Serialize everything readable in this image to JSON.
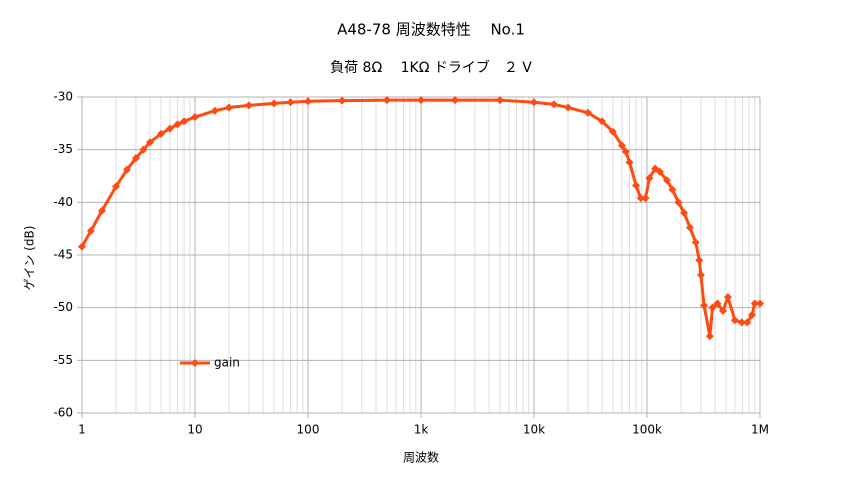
{
  "chart_data": {
    "type": "line",
    "title": "A48-78  周波数特性　 No.1",
    "subtitle": "負荷 8Ω　 1KΩ ドライブ　２ V",
    "xlabel": "周波数",
    "ylabel": "ゲイン (dB)",
    "xscale": "log",
    "grid": true,
    "minor_grid": true,
    "legend": "lower left",
    "xlim": [
      1,
      1000000
    ],
    "ylim": [
      -60,
      -30
    ],
    "xticks": [
      1,
      10,
      100,
      {
        "value": 1000,
        "label": "1k"
      },
      {
        "value": 10000,
        "label": "10k"
      },
      {
        "value": 100000,
        "label": "100k"
      },
      {
        "value": 1000000,
        "label": "1M"
      }
    ],
    "yticks": [
      -30,
      -35,
      -40,
      -45,
      -50,
      -55,
      -60
    ],
    "series": [
      {
        "name": "gain",
        "color": "#ff4a12",
        "x": [
          1,
          1.2,
          1.5,
          2,
          2.5,
          3,
          3.5,
          4,
          5,
          6,
          7,
          8,
          10,
          15,
          20,
          30,
          50,
          70,
          100,
          200,
          500,
          1000,
          2000,
          5000,
          10000,
          15000,
          20000,
          30000,
          40000,
          50000,
          60000,
          65000,
          70000,
          80000,
          88000,
          97000,
          105000,
          118000,
          130000,
          150000,
          168000,
          190000,
          213000,
          240000,
          270000,
          290000,
          300000,
          320000,
          360000,
          380000,
          420000,
          470000,
          520000,
          600000,
          690000,
          770000,
          850000,
          900000,
          1000000
        ],
        "values": [
          -44.2,
          -42.7,
          -40.8,
          -38.5,
          -36.9,
          -35.8,
          -35.0,
          -34.3,
          -33.5,
          -33.0,
          -32.6,
          -32.3,
          -31.9,
          -31.3,
          -31.0,
          -30.8,
          -30.6,
          -30.5,
          -30.4,
          -30.35,
          -30.3,
          -30.3,
          -30.3,
          -30.3,
          -30.5,
          -30.7,
          -31.0,
          -31.5,
          -32.3,
          -33.3,
          -34.6,
          -35.2,
          -36.2,
          -38.4,
          -39.6,
          -39.6,
          -37.7,
          -36.8,
          -37.1,
          -37.9,
          -38.8,
          -40.0,
          -41.0,
          -42.4,
          -43.8,
          -45.5,
          -46.9,
          -49.8,
          -52.7,
          -50.0,
          -49.6,
          -50.3,
          -49.0,
          -51.2,
          -51.4,
          -51.4,
          -50.7,
          -49.6,
          -49.6
        ]
      }
    ]
  }
}
